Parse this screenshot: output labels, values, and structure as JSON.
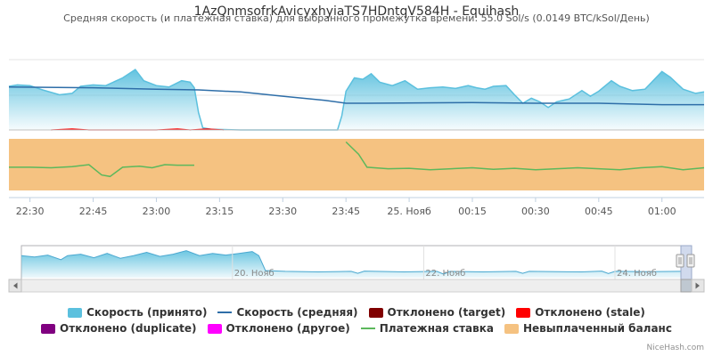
{
  "chart_data": {
    "type": "area",
    "title": "1AzQnmsofrkAvicyxhyiaTS7HDntqV584H - Equihash",
    "subtitle": "Средняя скорость (и платежная ставка) для выбранного промежутка времени: 55.0 Sol/s (0.0149 BTC/kSol/День)",
    "x_ticks": [
      "22:30",
      "22:45",
      "23:00",
      "23:15",
      "23:30",
      "23:45",
      "25. Нояб",
      "00:15",
      "00:30",
      "00:45",
      "01:00"
    ],
    "xlim": [
      "22:25",
      "01:10"
    ],
    "series": [
      {
        "name": "Скорость (принято)",
        "type": "area",
        "color": "#5bc0de",
        "points": [
          [
            "22:25",
            62
          ],
          [
            "22:27",
            64
          ],
          [
            "22:30",
            63
          ],
          [
            "22:33",
            57
          ],
          [
            "22:37",
            50
          ],
          [
            "22:40",
            52
          ],
          [
            "22:42",
            62
          ],
          [
            "22:45",
            64
          ],
          [
            "22:48",
            63
          ],
          [
            "22:52",
            74
          ],
          [
            "22:55",
            86
          ],
          [
            "22:57",
            70
          ],
          [
            "23:00",
            63
          ],
          [
            "23:03",
            61
          ],
          [
            "23:06",
            70
          ],
          [
            "23:08",
            68
          ],
          [
            "23:09",
            60
          ],
          [
            "23:10",
            25
          ],
          [
            "23:11",
            3
          ],
          [
            "23:13",
            1
          ],
          [
            "23:20",
            0
          ],
          [
            "23:30",
            0
          ],
          [
            "23:40",
            0
          ],
          [
            "23:43",
            0
          ],
          [
            "23:44",
            20
          ],
          [
            "23:45",
            55
          ],
          [
            "23:47",
            74
          ],
          [
            "23:49",
            72
          ],
          [
            "23:51",
            80
          ],
          [
            "23:53",
            68
          ],
          [
            "23:56",
            63
          ],
          [
            "23:59",
            70
          ],
          [
            "00:02",
            58
          ],
          [
            "00:05",
            60
          ],
          [
            "00:08",
            61
          ],
          [
            "00:11",
            59
          ],
          [
            "00:14",
            63
          ],
          [
            "00:16",
            60
          ],
          [
            "00:18",
            58
          ],
          [
            "00:20",
            62
          ],
          [
            "00:23",
            63
          ],
          [
            "00:25",
            50
          ],
          [
            "00:27",
            38
          ],
          [
            "00:29",
            45
          ],
          [
            "00:31",
            40
          ],
          [
            "00:33",
            32
          ],
          [
            "00:35",
            40
          ],
          [
            "00:38",
            44
          ],
          [
            "00:41",
            56
          ],
          [
            "00:43",
            48
          ],
          [
            "00:45",
            55
          ],
          [
            "00:48",
            70
          ],
          [
            "00:50",
            62
          ],
          [
            "00:53",
            56
          ],
          [
            "00:56",
            58
          ],
          [
            "01:00",
            83
          ],
          [
            "01:02",
            75
          ],
          [
            "01:05",
            58
          ],
          [
            "01:08",
            52
          ],
          [
            "01:10",
            54
          ]
        ]
      },
      {
        "name": "Скорость (средняя)",
        "type": "line",
        "color": "#2e6ea8",
        "points": [
          [
            "22:25",
            61
          ],
          [
            "22:45",
            60
          ],
          [
            "23:00",
            58
          ],
          [
            "23:10",
            57
          ],
          [
            "23:20",
            54
          ],
          [
            "23:30",
            48
          ],
          [
            "23:40",
            42
          ],
          [
            "23:45",
            38
          ],
          [
            "23:50",
            38
          ],
          [
            "00:15",
            39
          ],
          [
            "00:30",
            38
          ],
          [
            "00:45",
            38
          ],
          [
            "01:00",
            36
          ],
          [
            "01:10",
            36
          ]
        ]
      },
      {
        "name": "Отклонено (target)",
        "type": "line",
        "color": "#800000",
        "points": []
      },
      {
        "name": "Отклонено (stale)",
        "type": "line",
        "color": "#ff0000",
        "points": [
          [
            "22:35",
            0
          ],
          [
            "22:40",
            1.5
          ],
          [
            "22:44",
            0
          ],
          [
            "23:00",
            0
          ],
          [
            "23:05",
            1.5
          ],
          [
            "23:08",
            0
          ],
          [
            "23:12",
            1.5
          ],
          [
            "23:16",
            0
          ]
        ]
      },
      {
        "name": "Отклонено (duplicate)",
        "type": "line",
        "color": "#800080",
        "points": []
      },
      {
        "name": "Отклонено (другое)",
        "type": "line",
        "color": "#ff00ff",
        "points": []
      },
      {
        "name": "Платежная ставка",
        "type": "line",
        "color": "#5cb85c",
        "points": [
          [
            "22:25",
            45
          ],
          [
            "22:30",
            45
          ],
          [
            "22:35",
            44
          ],
          [
            "22:40",
            46
          ],
          [
            "22:44",
            50
          ],
          [
            "22:47",
            30
          ],
          [
            "22:49",
            27
          ],
          [
            "22:52",
            45
          ],
          [
            "22:56",
            47
          ],
          [
            "22:59",
            44
          ],
          [
            "23:02",
            50
          ],
          [
            "23:05",
            49
          ],
          [
            "23:09",
            49
          ],
          [
            null,
            null
          ],
          [
            "23:45",
            94
          ],
          [
            "23:48",
            70
          ],
          [
            "23:50",
            45
          ],
          [
            "23:55",
            42
          ],
          [
            "00:00",
            43
          ],
          [
            "00:05",
            40
          ],
          [
            "00:10",
            42
          ],
          [
            "00:15",
            44
          ],
          [
            "00:20",
            41
          ],
          [
            "00:25",
            43
          ],
          [
            "00:30",
            40
          ],
          [
            "00:35",
            42
          ],
          [
            "00:40",
            44
          ],
          [
            "00:45",
            42
          ],
          [
            "00:50",
            40
          ],
          [
            "00:55",
            44
          ],
          [
            "01:00",
            46
          ],
          [
            "01:05",
            40
          ],
          [
            "01:10",
            44
          ]
        ]
      },
      {
        "name": "Невыплаченный баланс",
        "type": "area",
        "color": "#f5c281",
        "points": [
          [
            "22:25",
            100
          ],
          [
            "01:10",
            100
          ]
        ]
      }
    ],
    "navigator": {
      "ticks": [
        "20. Нояб",
        "22. Нояб",
        "24. Нояб"
      ],
      "profile": [
        [
          0.0,
          0.3
        ],
        [
          0.02,
          0.35
        ],
        [
          0.04,
          0.28
        ],
        [
          0.06,
          0.45
        ],
        [
          0.07,
          0.3
        ],
        [
          0.09,
          0.25
        ],
        [
          0.11,
          0.38
        ],
        [
          0.13,
          0.22
        ],
        [
          0.15,
          0.4
        ],
        [
          0.17,
          0.3
        ],
        [
          0.19,
          0.18
        ],
        [
          0.21,
          0.33
        ],
        [
          0.23,
          0.25
        ],
        [
          0.25,
          0.12
        ],
        [
          0.27,
          0.3
        ],
        [
          0.29,
          0.22
        ],
        [
          0.31,
          0.28
        ],
        [
          0.33,
          0.22
        ],
        [
          0.35,
          0.15
        ],
        [
          0.36,
          0.3
        ],
        [
          0.37,
          0.85
        ],
        [
          0.4,
          0.88
        ],
        [
          0.45,
          0.9
        ],
        [
          0.5,
          0.88
        ],
        [
          0.51,
          0.95
        ],
        [
          0.52,
          0.87
        ],
        [
          0.58,
          0.9
        ],
        [
          0.63,
          0.88
        ],
        [
          0.64,
          0.98
        ],
        [
          0.65,
          0.88
        ],
        [
          0.7,
          0.9
        ],
        [
          0.75,
          0.88
        ],
        [
          0.76,
          0.95
        ],
        [
          0.77,
          0.88
        ],
        [
          0.85,
          0.9
        ],
        [
          0.88,
          0.87
        ],
        [
          0.89,
          0.96
        ],
        [
          0.9,
          0.88
        ],
        [
          0.95,
          0.89
        ],
        [
          1.0,
          0.88
        ]
      ]
    },
    "credits": "NiceHash.com"
  }
}
